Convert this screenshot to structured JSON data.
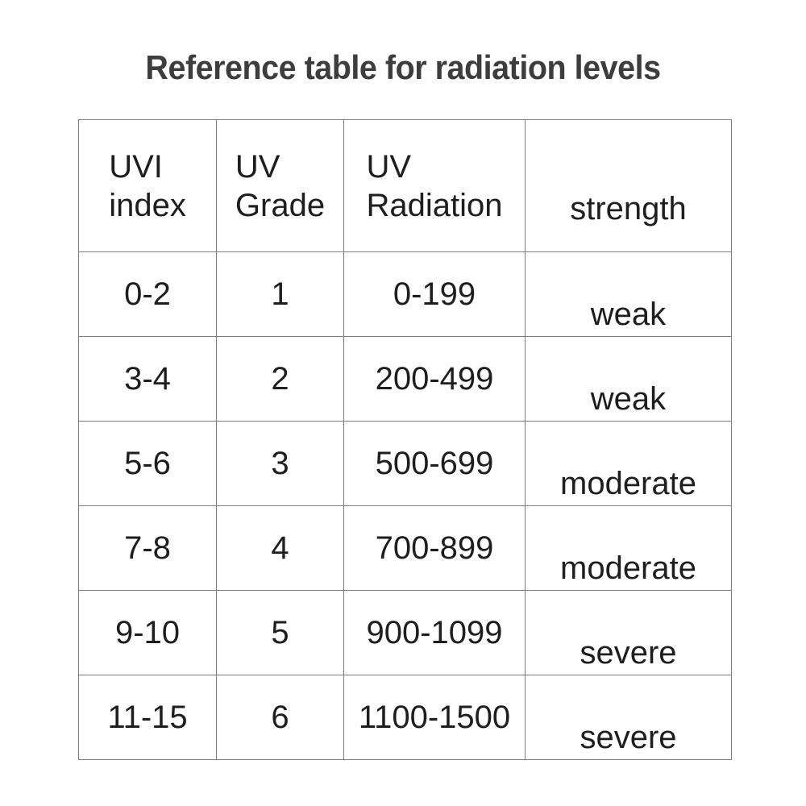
{
  "title": "Reference table for radiation levels",
  "colors": {
    "background": "#ffffff",
    "border": "#7d7d7d",
    "text": "#1e1e1e",
    "title": "#3d3d3d"
  },
  "table": {
    "headers": [
      {
        "id": "uvi-index",
        "label": "UVI\nindex"
      },
      {
        "id": "uv-grade",
        "label": "UV\nGrade"
      },
      {
        "id": "uv-radiation",
        "label": "UV\nRadiation"
      },
      {
        "id": "strength",
        "label": "strength"
      }
    ],
    "rows": [
      {
        "uvi_index": "0-2",
        "uv_grade": "1",
        "uv_radiation": "0-199",
        "strength": "weak"
      },
      {
        "uvi_index": "3-4",
        "uv_grade": "2",
        "uv_radiation": "200-499",
        "strength": "weak"
      },
      {
        "uvi_index": "5-6",
        "uv_grade": "3",
        "uv_radiation": "500-699",
        "strength": "moderate"
      },
      {
        "uvi_index": "7-8",
        "uv_grade": "4",
        "uv_radiation": "700-899",
        "strength": "moderate"
      },
      {
        "uvi_index": "9-10",
        "uv_grade": "5",
        "uv_radiation": "900-1099",
        "strength": "severe"
      },
      {
        "uvi_index": "11-15",
        "uv_grade": "6",
        "uv_radiation": "1100-1500",
        "strength": "severe"
      }
    ]
  }
}
